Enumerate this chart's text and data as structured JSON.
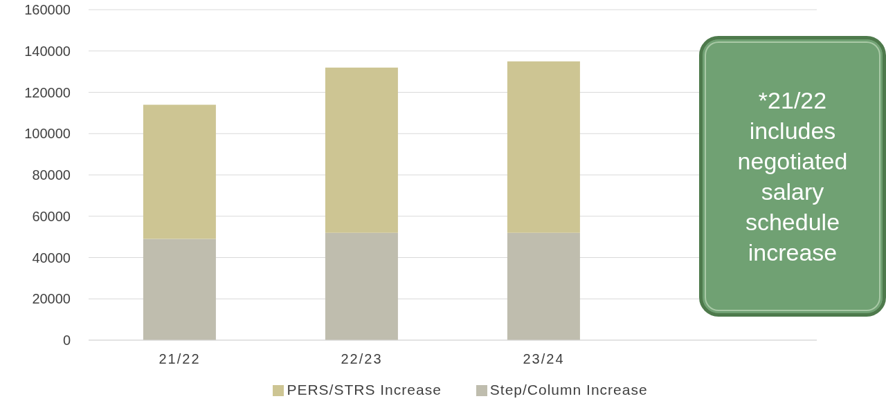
{
  "chart_data": {
    "type": "bar",
    "stacked": true,
    "categories": [
      "21/22",
      "22/23",
      "23/24",
      null
    ],
    "series": [
      {
        "name": "Step/Column Increase",
        "color": "#bfbdae",
        "values": [
          49000,
          52000,
          52000,
          null
        ]
      },
      {
        "name": "PERS/STRS Increase",
        "color": "#cdc593",
        "values": [
          65000,
          80000,
          83000,
          null
        ]
      }
    ],
    "ylim": [
      0,
      160000
    ],
    "yticks": [
      0,
      20000,
      40000,
      60000,
      80000,
      100000,
      120000,
      140000,
      160000
    ],
    "grid": "y",
    "legend": "bottom",
    "annotations": [
      "*21/22 includes negotiated salary schedule increase"
    ]
  }
}
